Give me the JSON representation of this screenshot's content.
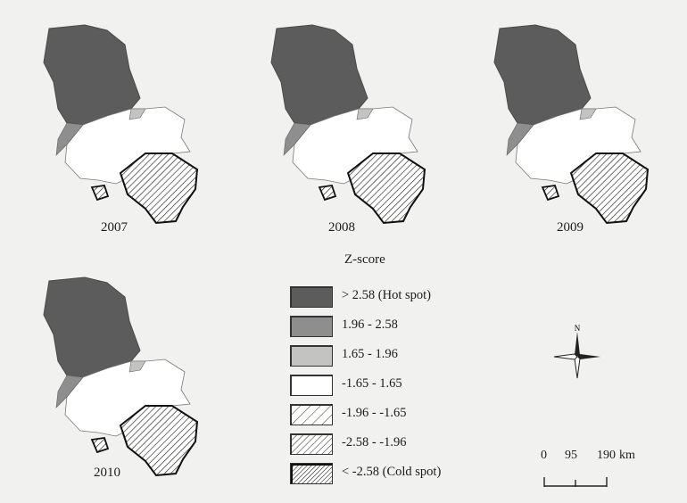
{
  "maps": [
    {
      "year": "2007"
    },
    {
      "year": "2008"
    },
    {
      "year": "2009"
    },
    {
      "year": "2010"
    }
  ],
  "legend": {
    "title": "Z-score",
    "items": [
      {
        "label": "> 2.58 (Hot spot)",
        "fill": "#5c5c5c",
        "pattern": "none"
      },
      {
        "label": "1.96 - 2.58",
        "fill": "#8e8e8e",
        "pattern": "none"
      },
      {
        "label": "1.65 - 1.96",
        "fill": "#c3c3c3",
        "pattern": "none"
      },
      {
        "label": "-1.65 - 1.65",
        "fill": "#ffffff",
        "pattern": "none"
      },
      {
        "label": "-1.96 - -1.65",
        "fill": "#ffffff",
        "pattern": "hatch-sparse"
      },
      {
        "label": "-2.58 - -1.96",
        "fill": "#ffffff",
        "pattern": "hatch-medium"
      },
      {
        "label": "< -2.58 (Cold spot)",
        "fill": "#ffffff",
        "pattern": "hatch-dense"
      }
    ]
  },
  "north_arrow": {
    "label": "N"
  },
  "scale_bar": {
    "ticks": [
      "0",
      "95",
      "190"
    ],
    "unit": "km"
  }
}
